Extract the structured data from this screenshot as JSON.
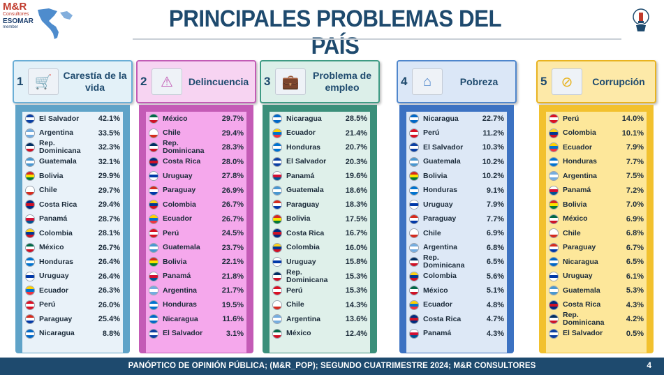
{
  "brand": {
    "name": "M&R",
    "sub": "Consultores",
    "esomar": "ESOMAR",
    "member": "member"
  },
  "title": "PRINCIPALES PROBLEMAS DEL PAÍS",
  "footer": {
    "text": "PANÓPTICO DE OPINIÓN PÚBLICA; (M&R_POP); SEGUNDO CUATRIMESTRE 2024; M&R CONSULTORES",
    "page": "4"
  },
  "colors": {
    "navy": "#1e4a6e"
  },
  "flags": {
    "El Salvador": [
      "#0b3fa3",
      "#ffffff",
      "#0b3fa3"
    ],
    "Argentina": [
      "#74acdf",
      "#ffffff",
      "#74acdf"
    ],
    "Rep. Dominicana": [
      "#002d62",
      "#ffffff",
      "#ce1126"
    ],
    "Guatemala": [
      "#4997d0",
      "#ffffff",
      "#4997d0"
    ],
    "Bolivia": [
      "#d52b1e",
      "#f9e300",
      "#007934"
    ],
    "Chile": [
      "#ffffff",
      "#ffffff",
      "#d52b1e"
    ],
    "Costa Rica": [
      "#002b7f",
      "#ce1126",
      "#002b7f"
    ],
    "Panamá": [
      "#ffffff",
      "#d21034",
      "#005293"
    ],
    "Colombia": [
      "#fcd116",
      "#003893",
      "#ce1126"
    ],
    "México": [
      "#006847",
      "#ffffff",
      "#ce1126"
    ],
    "Honduras": [
      "#0073cf",
      "#ffffff",
      "#0073cf"
    ],
    "Uruguay": [
      "#ffffff",
      "#0038a8",
      "#ffffff"
    ],
    "Ecuador": [
      "#ffd100",
      "#0072ce",
      "#ef3340"
    ],
    "Perú": [
      "#d91023",
      "#ffffff",
      "#d91023"
    ],
    "Paraguay": [
      "#d52b1e",
      "#ffffff",
      "#0038a8"
    ],
    "Nicaragua": [
      "#0067c6",
      "#ffffff",
      "#0067c6"
    ]
  },
  "columns": [
    {
      "number": "1",
      "title": "Carestía de la vida",
      "icon": "cost-of-living-icon",
      "head_bg": "#e3f1f8",
      "head_border": "#6aaed6",
      "body_bg": "#5fa3c8",
      "list_bg": "#e9f2f9",
      "rows": [
        {
          "country": "El Salvador",
          "pct": "42.1%"
        },
        {
          "country": "Argentina",
          "pct": "33.5%"
        },
        {
          "country": "Rep. Dominicana",
          "pct": "32.3%"
        },
        {
          "country": "Guatemala",
          "pct": "32.1%"
        },
        {
          "country": "Bolivia",
          "pct": "29.9%"
        },
        {
          "country": "Chile",
          "pct": "29.7%"
        },
        {
          "country": "Costa Rica",
          "pct": "29.4%"
        },
        {
          "country": "Panamá",
          "pct": "28.7%"
        },
        {
          "country": "Colombia",
          "pct": "28.1%"
        },
        {
          "country": "México",
          "pct": "26.7%"
        },
        {
          "country": "Honduras",
          "pct": "26.4%"
        },
        {
          "country": "Uruguay",
          "pct": "26.4%"
        },
        {
          "country": "Ecuador",
          "pct": "26.3%"
        },
        {
          "country": "Perú",
          "pct": "26.0%"
        },
        {
          "country": "Paraguay",
          "pct": "25.4%"
        },
        {
          "country": "Nicaragua",
          "pct": "8.8%"
        }
      ]
    },
    {
      "number": "2",
      "title": "Delincuencia",
      "icon": "crime-icon",
      "head_bg": "#f7d4f2",
      "head_border": "#c25cb5",
      "body_bg": "#c45bb6",
      "list_bg": "#f5a8ec",
      "rows": [
        {
          "country": "México",
          "pct": "29.7%"
        },
        {
          "country": "Chile",
          "pct": "29.4%"
        },
        {
          "country": "Rep. Dominicana",
          "pct": "28.3%"
        },
        {
          "country": "Costa Rica",
          "pct": "28.0%"
        },
        {
          "country": "Uruguay",
          "pct": "27.8%"
        },
        {
          "country": "Paraguay",
          "pct": "26.9%"
        },
        {
          "country": "Colombia",
          "pct": "26.7%"
        },
        {
          "country": "Ecuador",
          "pct": "26.7%"
        },
        {
          "country": "Perú",
          "pct": "24.5%"
        },
        {
          "country": "Guatemala",
          "pct": "23.7%"
        },
        {
          "country": "Bolivia",
          "pct": "22.1%"
        },
        {
          "country": "Panamá",
          "pct": "21.8%"
        },
        {
          "country": "Argentina",
          "pct": "21.7%"
        },
        {
          "country": "Honduras",
          "pct": "19.5%"
        },
        {
          "country": "Nicaragua",
          "pct": "11.6%"
        },
        {
          "country": "El Salvador",
          "pct": "3.1%"
        }
      ]
    },
    {
      "number": "3",
      "title": "Problema de empleo",
      "icon": "employment-icon",
      "head_bg": "#dcefe9",
      "head_border": "#3f9b84",
      "body_bg": "#3b8f7a",
      "list_bg": "#dff0ea",
      "rows": [
        {
          "country": "Nicaragua",
          "pct": "28.5%"
        },
        {
          "country": "Ecuador",
          "pct": "21.4%"
        },
        {
          "country": "Honduras",
          "pct": "20.7%"
        },
        {
          "country": "El Salvador",
          "pct": "20.3%"
        },
        {
          "country": "Panamá",
          "pct": "19.6%"
        },
        {
          "country": "Guatemala",
          "pct": "18.6%"
        },
        {
          "country": "Paraguay",
          "pct": "18.3%"
        },
        {
          "country": "Bolivia",
          "pct": "17.5%"
        },
        {
          "country": "Costa Rica",
          "pct": "16.7%"
        },
        {
          "country": "Colombia",
          "pct": "16.0%"
        },
        {
          "country": "Uruguay",
          "pct": "15.8%"
        },
        {
          "country": "Rep. Dominicana",
          "pct": "15.3%"
        },
        {
          "country": "Perú",
          "pct": "15.3%"
        },
        {
          "country": "Chile",
          "pct": "14.3%"
        },
        {
          "country": "Argentina",
          "pct": "13.6%"
        },
        {
          "country": "México",
          "pct": "12.4%"
        }
      ]
    },
    {
      "number": "4",
      "title": "Pobreza",
      "icon": "poverty-icon",
      "head_bg": "#dbe7f7",
      "head_border": "#4f86cc",
      "body_bg": "#3c72c2",
      "list_bg": "#dde8f6",
      "rows": [
        {
          "country": "Nicaragua",
          "pct": "22.7%"
        },
        {
          "country": "Perú",
          "pct": "11.2%"
        },
        {
          "country": "El Salvador",
          "pct": "10.3%"
        },
        {
          "country": "Guatemala",
          "pct": "10.2%"
        },
        {
          "country": "Bolivia",
          "pct": "10.2%"
        },
        {
          "country": "Honduras",
          "pct": "9.1%"
        },
        {
          "country": "Uruguay",
          "pct": "7.9%"
        },
        {
          "country": "Paraguay",
          "pct": "7.7%"
        },
        {
          "country": "Chile",
          "pct": "6.9%"
        },
        {
          "country": "Argentina",
          "pct": "6.8%"
        },
        {
          "country": "Rep. Dominicana",
          "pct": "6.5%"
        },
        {
          "country": "Colombia",
          "pct": "5.6%"
        },
        {
          "country": "México",
          "pct": "5.1%"
        },
        {
          "country": "Ecuador",
          "pct": "4.8%"
        },
        {
          "country": "Costa Rica",
          "pct": "4.7%"
        },
        {
          "country": "Panamá",
          "pct": "4.3%"
        }
      ]
    },
    {
      "number": "5",
      "title": "Corrupción",
      "icon": "no-corruption-icon",
      "head_bg": "#fde9a8",
      "head_border": "#e8b320",
      "body_bg": "#f2c12e",
      "list_bg": "#fde79a",
      "rows": [
        {
          "country": "Perú",
          "pct": "14.0%"
        },
        {
          "country": "Colombia",
          "pct": "10.1%"
        },
        {
          "country": "Ecuador",
          "pct": "7.9%"
        },
        {
          "country": "Honduras",
          "pct": "7.7%"
        },
        {
          "country": "Argentina",
          "pct": "7.5%"
        },
        {
          "country": "Panamá",
          "pct": "7.2%"
        },
        {
          "country": "Bolivia",
          "pct": "7.0%"
        },
        {
          "country": "México",
          "pct": "6.9%"
        },
        {
          "country": "Chile",
          "pct": "6.8%"
        },
        {
          "country": "Paraguay",
          "pct": "6.7%"
        },
        {
          "country": "Nicaragua",
          "pct": "6.5%"
        },
        {
          "country": "Uruguay",
          "pct": "6.1%"
        },
        {
          "country": "Guatemala",
          "pct": "5.3%"
        },
        {
          "country": "Costa Rica",
          "pct": "4.3%"
        },
        {
          "country": "Rep. Dominicana",
          "pct": "4.2%"
        },
        {
          "country": "El Salvador",
          "pct": "0.5%"
        }
      ]
    }
  ]
}
